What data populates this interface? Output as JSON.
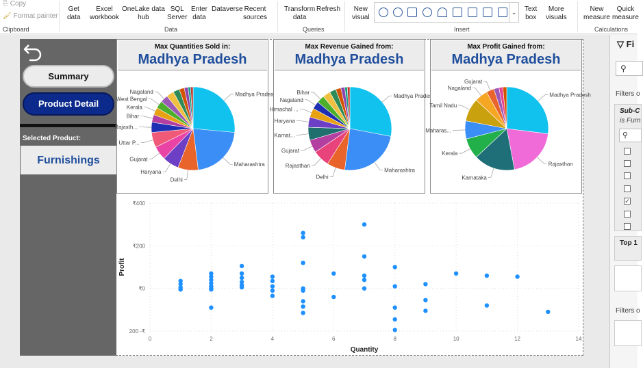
{
  "ribbon": {
    "clipboard": {
      "copy": "Copy",
      "format_painter": "Format painter",
      "label": "Clipboard"
    },
    "data": {
      "get_data": "Get\ndata",
      "excel": "Excel\nworkbook",
      "onelake": "OneLake data\nhub",
      "sql": "SQL\nServer",
      "enter": "Enter\ndata",
      "dataverse": "Dataverse",
      "recent": "Recent\nsources",
      "label": "Data"
    },
    "queries": {
      "transform": "Transform\ndata",
      "refresh": "Refresh",
      "label": "Queries"
    },
    "insert": {
      "new_visual": "New\nvisual",
      "text_box": "Text\nbox",
      "more_visuals": "More\nvisuals",
      "label": "Insert"
    },
    "calculations": {
      "new_measure": "New\nmeasure",
      "quick_measure": "Quick\nmeasure",
      "label": "Calculations"
    }
  },
  "left_panel": {
    "summary_label": "Summary",
    "detail_label": "Product Detail",
    "selected_label": "Selected Product:",
    "selected_value": "Furnishings"
  },
  "cards": [
    {
      "title": "Max Quantities Sold in:",
      "value": "Madhya Pradesh"
    },
    {
      "title": "Max Revenue Gained from:",
      "value": "Madhya Pradesh"
    },
    {
      "title": "Max Profit Gained from:",
      "value": "Madhya Pradesh"
    }
  ],
  "filters": {
    "title": "Fi",
    "filters_on_1": "Filters o",
    "sub_cat": "Sub-C",
    "is_furn": "is Furn",
    "top": "Top 1",
    "filters_on_2": "Filters o"
  },
  "chart_data": [
    {
      "type": "pie",
      "labels": [
        "Madhya Pradesh",
        "Maharashtra",
        "Delhi",
        "Haryana",
        "Gujarat",
        "Uttar P...",
        "Rajasth...",
        "Bihar",
        "Kerala",
        "West Bengal",
        "Nagaland"
      ],
      "values": [
        27,
        22,
        8,
        6.5,
        5.5,
        6,
        4,
        3,
        3,
        3,
        3
      ],
      "others": [
        3,
        2.5,
        2,
        1.5,
        1,
        1
      ],
      "colors": [
        "#12c2ee",
        "#3b8ef5",
        "#e8642a",
        "#6c3fc4",
        "#e843a5",
        "#f05a78",
        "#1f2fb3",
        "#b33fa0",
        "#e8a112",
        "#4caf2c",
        "#9b59b6"
      ],
      "other_colors": [
        "#f0c040",
        "#2e8b57",
        "#d35400",
        "#8e44ad",
        "#16a085",
        "#c0392b"
      ]
    },
    {
      "type": "pie",
      "labels": [
        "Madhya Pradesh",
        "Maharashtra",
        "Delhi",
        "Rajasthan",
        "Gujarat",
        "Karnat...",
        "Haryana",
        "Himachal ...",
        "Nagaland",
        "Bihar"
      ],
      "values": [
        28,
        24,
        7,
        6.5,
        5,
        5,
        4,
        3.5,
        3,
        3
      ],
      "others": [
        3,
        2.5,
        2,
        1.5,
        1,
        1
      ],
      "colors": [
        "#12c2ee",
        "#3b8ef5",
        "#e8642a",
        "#e8437a",
        "#b33fa0",
        "#1f6f6f",
        "#6c3fc4",
        "#e8a112",
        "#1f2fb3",
        "#4caf2c"
      ],
      "other_colors": [
        "#f0c040",
        "#2e8b57",
        "#d35400",
        "#8e44ad",
        "#16a085",
        "#c0392b"
      ]
    },
    {
      "type": "pie",
      "labels": [
        "Madhya Pradesh",
        "Rajasthan",
        "Karnataka",
        "Kerala",
        "Maharas...",
        "Tamil Nadu",
        "Nagaland",
        "Gujarat"
      ],
      "values": [
        27,
        20,
        16,
        8,
        7,
        9,
        5,
        3
      ],
      "others": [
        2,
        1.5,
        1.5
      ],
      "colors": [
        "#12c2ee",
        "#f06ad8",
        "#1f6f78",
        "#22b04b",
        "#3b8ef5",
        "#c9a00e",
        "#f5a623",
        "#e8642a"
      ],
      "other_colors": [
        "#9b59b6",
        "#e84393",
        "#d35400"
      ]
    },
    {
      "type": "scatter",
      "xlabel": "Quantity",
      "ylabel": "Profit",
      "xlim": [
        0,
        14
      ],
      "ylim": [
        -200,
        400
      ],
      "xticks": [
        "0",
        "2",
        "4",
        "6",
        "8",
        "10",
        "12",
        "14"
      ],
      "yticks": [
        "₹400",
        "₹200",
        "₹0",
        "200 -₹"
      ],
      "color": "#1e90ff",
      "points": [
        [
          1,
          35
        ],
        [
          1,
          20
        ],
        [
          1,
          5
        ],
        [
          1,
          -5
        ],
        [
          2,
          70
        ],
        [
          2,
          55
        ],
        [
          2,
          40
        ],
        [
          2,
          25
        ],
        [
          2,
          10
        ],
        [
          2,
          0
        ],
        [
          2,
          -5
        ],
        [
          2,
          -90
        ],
        [
          3,
          105
        ],
        [
          3,
          70
        ],
        [
          3,
          50
        ],
        [
          3,
          30
        ],
        [
          3,
          15
        ],
        [
          3,
          5
        ],
        [
          4,
          55
        ],
        [
          4,
          35
        ],
        [
          4,
          10
        ],
        [
          4,
          -10
        ],
        [
          4,
          -35
        ],
        [
          5,
          260
        ],
        [
          5,
          240
        ],
        [
          5,
          120
        ],
        [
          5,
          0
        ],
        [
          5,
          -10
        ],
        [
          5,
          -60
        ],
        [
          5,
          -85
        ],
        [
          5,
          -115
        ],
        [
          6,
          70
        ],
        [
          6,
          -40
        ],
        [
          7,
          300
        ],
        [
          7,
          150
        ],
        [
          7,
          60
        ],
        [
          7,
          40
        ],
        [
          7,
          0
        ],
        [
          8,
          100
        ],
        [
          8,
          10
        ],
        [
          8,
          -90
        ],
        [
          8,
          -145
        ],
        [
          8,
          -195
        ],
        [
          9,
          20
        ],
        [
          9,
          -55
        ],
        [
          9,
          -105
        ],
        [
          10,
          70
        ],
        [
          11,
          60
        ],
        [
          11,
          -80
        ],
        [
          12,
          55
        ],
        [
          13,
          -110
        ]
      ]
    }
  ]
}
